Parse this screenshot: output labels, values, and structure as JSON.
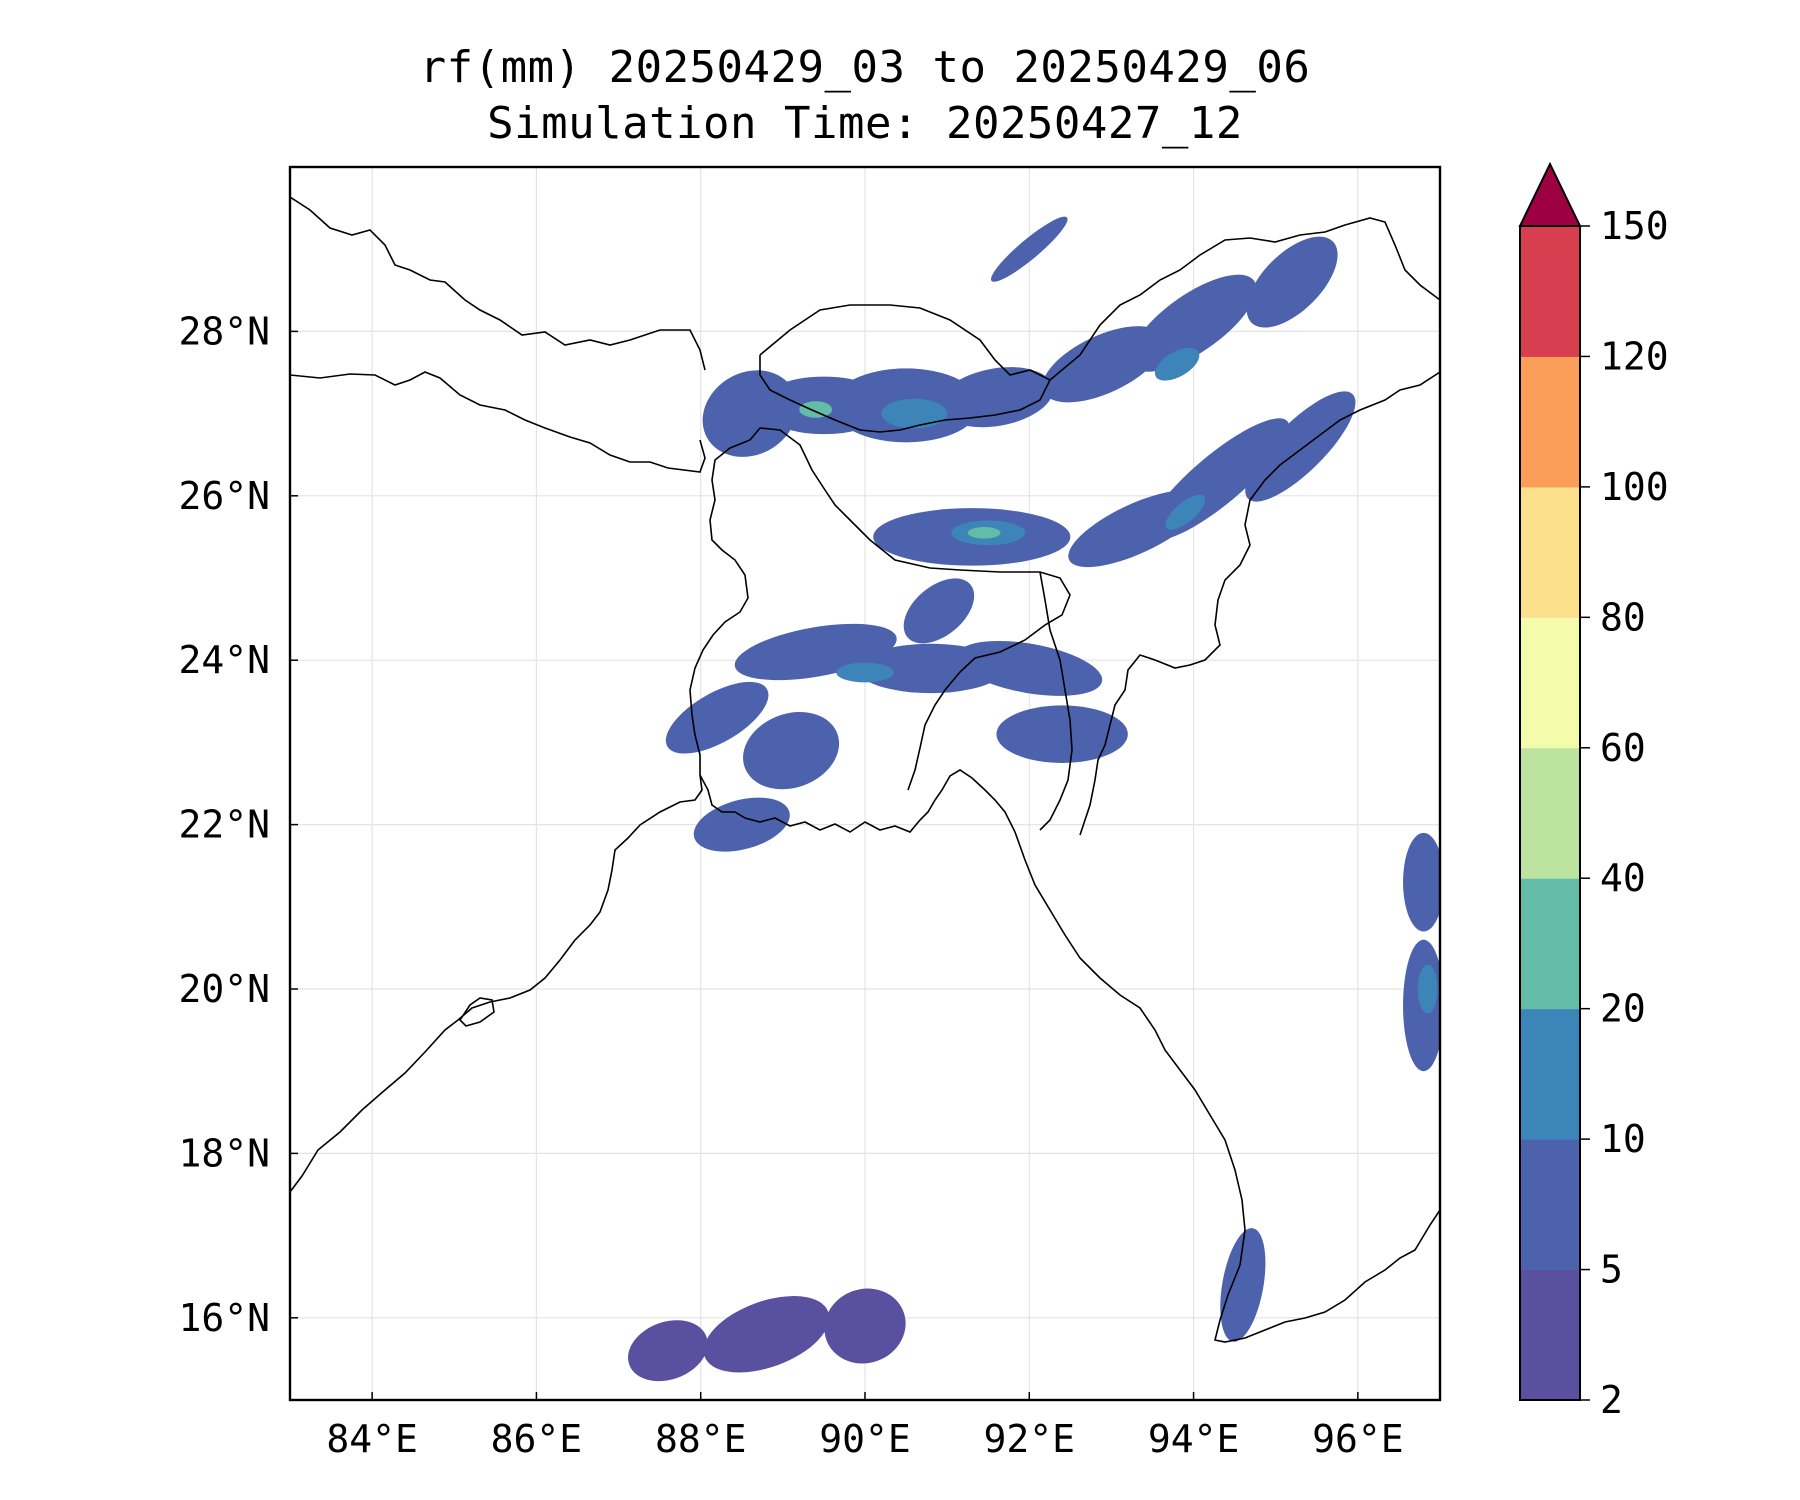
{
  "title": {
    "line1": "rf(mm) 20250429_03 to 20250429_06",
    "line2": "Simulation Time: 20250427_12"
  },
  "map": {
    "extent": {
      "lon_min": 83.0,
      "lon_max": 97.0,
      "lat_min": 15.0,
      "lat_max": 30.0
    },
    "lon_ticks": [
      84,
      86,
      88,
      90,
      92,
      94,
      96
    ],
    "lat_ticks": [
      16,
      18,
      20,
      22,
      24,
      26,
      28
    ],
    "lon_tick_labels": [
      "84°E",
      "86°E",
      "88°E",
      "90°E",
      "92°E",
      "94°E",
      "96°E"
    ],
    "lat_tick_labels": [
      "16°N",
      "18°N",
      "20°N",
      "22°N",
      "24°N",
      "26°N",
      "28°N"
    ],
    "grid": true
  },
  "colorbar": {
    "levels": [
      2,
      5,
      10,
      20,
      40,
      60,
      80,
      100,
      120,
      150
    ],
    "labels": [
      "2",
      "5",
      "10",
      "20",
      "40",
      "60",
      "80",
      "100",
      "120",
      "150"
    ],
    "colors": [
      "#5a50a0",
      "#4d62ac",
      "#3d85b9",
      "#63bca8",
      "#bde3a0",
      "#f4fbab",
      "#fde08b",
      "#fa9e59",
      "#d73f50"
    ],
    "extend_color": "#9e0142",
    "extend": "max"
  },
  "rain_areas": [
    {
      "lon": 88.6,
      "lat": 27.0,
      "rx": 0.6,
      "ry": 0.5,
      "rot": -30,
      "level": 1
    },
    {
      "lon": 89.5,
      "lat": 27.1,
      "rx": 0.8,
      "ry": 0.35,
      "rot": 0,
      "level": 1
    },
    {
      "lon": 90.5,
      "lat": 27.1,
      "rx": 0.9,
      "ry": 0.45,
      "rot": 0,
      "level": 1
    },
    {
      "lon": 91.6,
      "lat": 27.2,
      "rx": 0.7,
      "ry": 0.35,
      "rot": -10,
      "level": 1
    },
    {
      "lon": 90.6,
      "lat": 27.0,
      "rx": 0.4,
      "ry": 0.18,
      "rot": 0,
      "level": 2
    },
    {
      "lon": 89.4,
      "lat": 27.05,
      "rx": 0.2,
      "ry": 0.1,
      "rot": 0,
      "level": 3
    },
    {
      "lon": 92.9,
      "lat": 27.6,
      "rx": 0.8,
      "ry": 0.35,
      "rot": -25,
      "level": 1
    },
    {
      "lon": 94.0,
      "lat": 28.1,
      "rx": 0.9,
      "ry": 0.35,
      "rot": -35,
      "level": 1
    },
    {
      "lon": 95.2,
      "lat": 28.6,
      "rx": 0.7,
      "ry": 0.35,
      "rot": -45,
      "level": 1
    },
    {
      "lon": 93.8,
      "lat": 27.6,
      "rx": 0.3,
      "ry": 0.15,
      "rot": -30,
      "level": 2
    },
    {
      "lon": 92.0,
      "lat": 29.0,
      "rx": 0.6,
      "ry": 0.12,
      "rot": -40,
      "level": 1
    },
    {
      "lon": 91.3,
      "lat": 25.5,
      "rx": 1.2,
      "ry": 0.35,
      "rot": 0,
      "level": 1
    },
    {
      "lon": 91.5,
      "lat": 25.55,
      "rx": 0.45,
      "ry": 0.15,
      "rot": 0,
      "level": 2
    },
    {
      "lon": 91.45,
      "lat": 25.55,
      "rx": 0.2,
      "ry": 0.07,
      "rot": 0,
      "level": 3
    },
    {
      "lon": 93.3,
      "lat": 25.6,
      "rx": 0.9,
      "ry": 0.3,
      "rot": -25,
      "level": 1
    },
    {
      "lon": 94.3,
      "lat": 26.2,
      "rx": 1.1,
      "ry": 0.3,
      "rot": -40,
      "level": 1
    },
    {
      "lon": 95.3,
      "lat": 26.6,
      "rx": 0.9,
      "ry": 0.3,
      "rot": -45,
      "level": 1
    },
    {
      "lon": 93.9,
      "lat": 25.8,
      "rx": 0.3,
      "ry": 0.12,
      "rot": -40,
      "level": 2
    },
    {
      "lon": 90.9,
      "lat": 24.6,
      "rx": 0.5,
      "ry": 0.3,
      "rot": -40,
      "level": 1
    },
    {
      "lon": 89.4,
      "lat": 24.1,
      "rx": 1.0,
      "ry": 0.3,
      "rot": -10,
      "level": 1
    },
    {
      "lon": 90.8,
      "lat": 23.9,
      "rx": 0.9,
      "ry": 0.3,
      "rot": 0,
      "level": 1
    },
    {
      "lon": 92.0,
      "lat": 23.9,
      "rx": 0.9,
      "ry": 0.3,
      "rot": 10,
      "level": 1
    },
    {
      "lon": 90.0,
      "lat": 23.85,
      "rx": 0.35,
      "ry": 0.12,
      "rot": 0,
      "level": 2
    },
    {
      "lon": 88.2,
      "lat": 23.3,
      "rx": 0.7,
      "ry": 0.3,
      "rot": -30,
      "level": 1
    },
    {
      "lon": 89.1,
      "lat": 22.9,
      "rx": 0.6,
      "ry": 0.45,
      "rot": -20,
      "level": 1
    },
    {
      "lon": 88.5,
      "lat": 22.0,
      "rx": 0.6,
      "ry": 0.3,
      "rot": -15,
      "level": 1
    },
    {
      "lon": 92.4,
      "lat": 23.1,
      "rx": 0.8,
      "ry": 0.35,
      "rot": 0,
      "level": 1
    },
    {
      "lon": 96.8,
      "lat": 21.3,
      "rx": 0.25,
      "ry": 0.6,
      "rot": 0,
      "level": 1
    },
    {
      "lon": 96.8,
      "lat": 19.8,
      "rx": 0.25,
      "ry": 0.8,
      "rot": 0,
      "level": 1
    },
    {
      "lon": 96.85,
      "lat": 20.0,
      "rx": 0.12,
      "ry": 0.3,
      "rot": 0,
      "level": 2
    },
    {
      "lon": 94.6,
      "lat": 16.4,
      "rx": 0.25,
      "ry": 0.7,
      "rot": 10,
      "level": 1
    },
    {
      "lon": 88.8,
      "lat": 15.8,
      "rx": 0.8,
      "ry": 0.4,
      "rot": -20,
      "level": 0
    },
    {
      "lon": 90.0,
      "lat": 15.9,
      "rx": 0.5,
      "ry": 0.45,
      "rot": -20,
      "level": 0
    },
    {
      "lon": 87.6,
      "lat": 15.6,
      "rx": 0.5,
      "ry": 0.35,
      "rot": -20,
      "level": 0
    }
  ]
}
